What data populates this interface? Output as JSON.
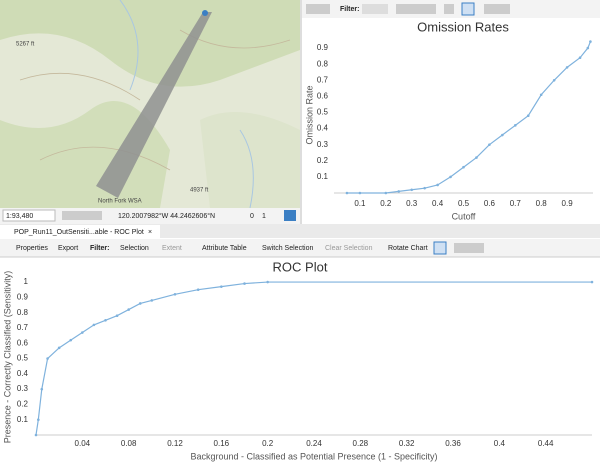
{
  "map": {
    "labels": [
      "5267 ft",
      "4937 ft",
      "North Fork WSA"
    ],
    "scale": "1:93,480",
    "coordinates": "120.2007982°W 44.2462606°N",
    "status": [
      "0",
      "1"
    ]
  },
  "top_toolbar": {
    "filter": "Filter:"
  },
  "tab": {
    "title": "POP_Run11_OutSensiti...able - ROC Plot"
  },
  "toolbar": {
    "properties": "Properties",
    "export": "Export",
    "filter": "Filter:",
    "selection": "Selection",
    "extent": "Extent",
    "attribute_table": "Attribute Table",
    "switch_selection": "Switch Selection",
    "clear_selection": "Clear Selection",
    "rotate_chart": "Rotate Chart"
  },
  "chart_data": [
    {
      "type": "line",
      "title": "Omission Rates",
      "xlabel": "Cutoff",
      "ylabel": "Omission Rate",
      "color": "#7fb2dd",
      "x": [
        0.05,
        0.1,
        0.2,
        0.25,
        0.3,
        0.35,
        0.4,
        0.45,
        0.5,
        0.55,
        0.6,
        0.65,
        0.7,
        0.75,
        0.8,
        0.85,
        0.9,
        0.95,
        0.98,
        0.99
      ],
      "values": [
        0,
        0,
        0,
        0.01,
        0.02,
        0.03,
        0.05,
        0.1,
        0.16,
        0.22,
        0.3,
        0.36,
        0.42,
        0.48,
        0.61,
        0.7,
        0.78,
        0.84,
        0.9,
        0.94
      ],
      "xlim": [
        0,
        1
      ],
      "ylim": [
        0,
        0.95
      ],
      "xticks": [
        0.1,
        0.2,
        0.3,
        0.4,
        0.5,
        0.6,
        0.7,
        0.8,
        0.9
      ],
      "yticks": [
        0.1,
        0.2,
        0.3,
        0.4,
        0.5,
        0.6,
        0.7,
        0.8,
        0.9
      ]
    },
    {
      "type": "line",
      "title": "ROC Plot",
      "xlabel": "Background - Classified as Potential Presence (1 - Specificity)",
      "ylabel": "Presence - Correctly Classified (Sensitivity)",
      "color": "#7fb2dd",
      "x": [
        0,
        0.002,
        0.005,
        0.01,
        0.02,
        0.03,
        0.04,
        0.05,
        0.06,
        0.07,
        0.08,
        0.09,
        0.1,
        0.12,
        0.14,
        0.16,
        0.18,
        0.2,
        0.48
      ],
      "values": [
        0,
        0.1,
        0.3,
        0.5,
        0.57,
        0.62,
        0.67,
        0.72,
        0.75,
        0.78,
        0.82,
        0.86,
        0.88,
        0.92,
        0.95,
        0.97,
        0.99,
        1,
        1
      ],
      "xlim": [
        0,
        0.48
      ],
      "ylim": [
        0,
        1.02
      ],
      "xticks": [
        0.04,
        0.08,
        0.12,
        0.16,
        0.2,
        0.24,
        0.28,
        0.32,
        0.36,
        0.4,
        0.44
      ],
      "yticks": [
        0.1,
        0.2,
        0.3,
        0.4,
        0.5,
        0.6,
        0.7,
        0.8,
        0.9,
        1
      ]
    }
  ]
}
